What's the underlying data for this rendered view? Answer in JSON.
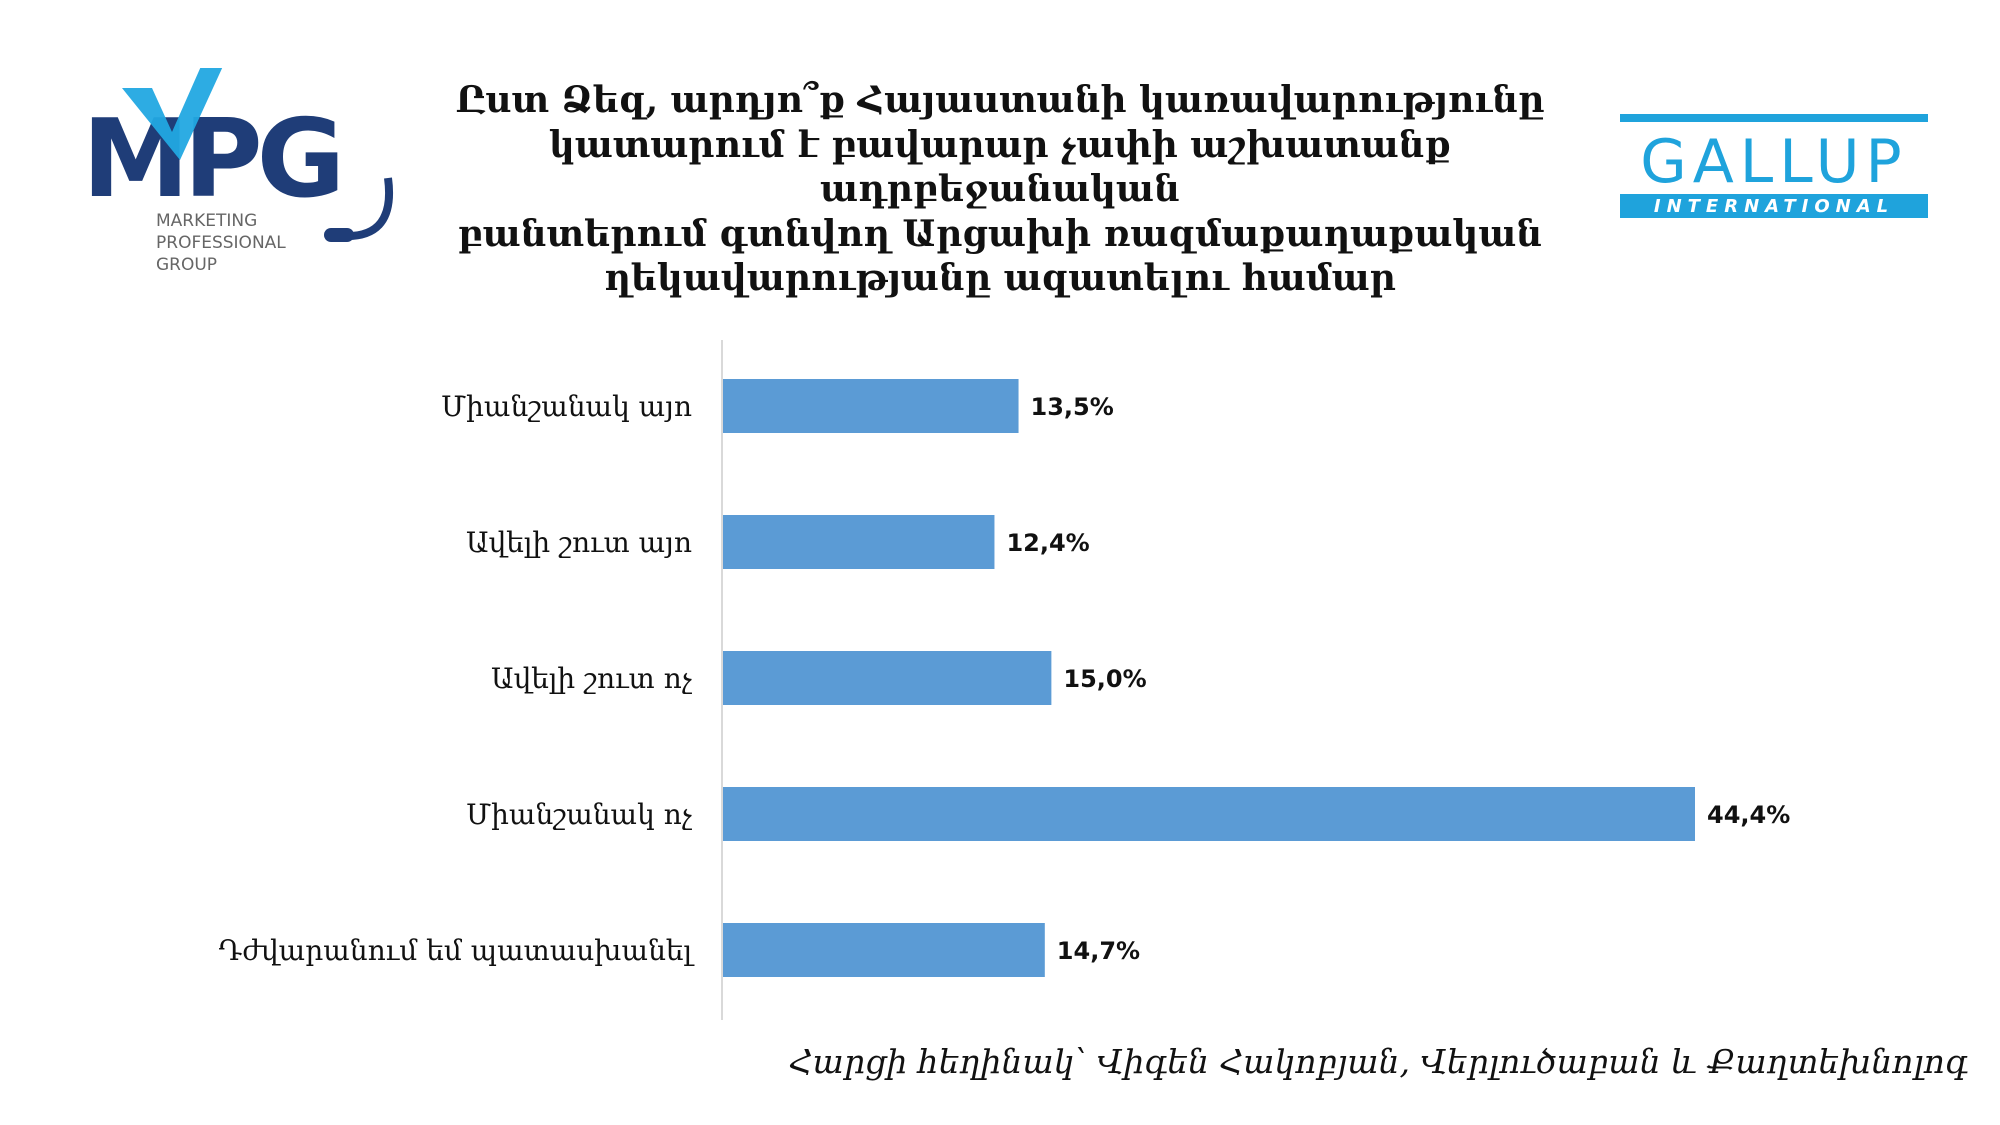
{
  "title_lines": [
    "Ըստ Ձեզ, արդյո՞ք Հայաստանի կառավարությունը",
    "կատարում է բավարար չափի աշխատանք ադրբեջանական",
    "բանտերում գտնվող Արցախի ռազմաքաղաքական",
    "ղեկավարությանը ազատելու համար"
  ],
  "mpg_logo": {
    "letters": "MPG",
    "subtitle_lines": [
      "MARKETING",
      "PROFESSIONAL",
      "GROUP"
    ],
    "colors": {
      "navy": "#1f3d78",
      "cyan": "#22a8e2",
      "gray": "#666666"
    }
  },
  "gallup_logo": {
    "name": "GALLUP",
    "subtitle": "INTERNATIONAL",
    "color": "#1fa3dc"
  },
  "caption": "Հարցի հեղինակ՝ Վիգեն Հակոբյան, Վերլուծաբան և Քաղտեխնոլոգ",
  "chart_data": {
    "type": "bar",
    "orientation": "horizontal",
    "categories": [
      "Միանշանակ այո",
      "Ավելի շուտ այո",
      "Ավելի շուտ ոչ",
      "Միանշանակ ոչ",
      "Դժվարանում եմ պատասխանել"
    ],
    "values": [
      13.5,
      12.4,
      15.0,
      44.4,
      14.7
    ],
    "value_labels": [
      "13,5%",
      "12,4%",
      "15,0%",
      "44,4%",
      "14,7%"
    ],
    "bar_color": "#5b9bd5",
    "axis_line_color": "#d9d9d9"
  }
}
